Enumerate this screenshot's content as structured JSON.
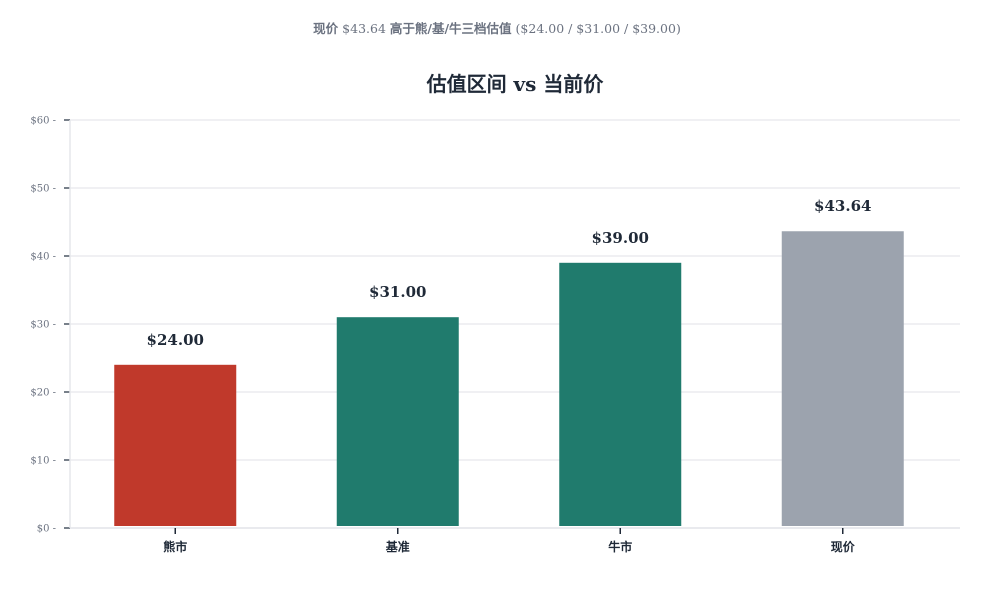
{
  "header": {
    "subtitle_prefix": "现价",
    "subtitle_price": "$43.64",
    "subtitle_mid": "高于熊/基/牛三档估值",
    "subtitle_values": "($24.00 / $31.00 / $39.00)"
  },
  "chart_data": {
    "type": "bar",
    "title": "估值区间 vs 当前价",
    "xlabel": "",
    "ylabel": "",
    "categories": [
      "熊市",
      "基准",
      "牛市",
      "现价"
    ],
    "values": [
      24.0,
      31.0,
      39.0,
      43.64
    ],
    "data_labels": [
      "$24.00",
      "$31.00",
      "$39.00",
      "$43.64"
    ],
    "colors": [
      "#c0392b",
      "#207b6d",
      "#207b6d",
      "#9ca3ae"
    ],
    "ylim": [
      0,
      60
    ],
    "yticks": [
      0,
      10,
      20,
      30,
      40,
      50,
      60
    ],
    "ytick_labels": [
      "$0 -",
      "$10 -",
      "$20 -",
      "$30 -",
      "$40 -",
      "$50 -",
      "$60 -"
    ],
    "grid": true,
    "legend": "none"
  }
}
